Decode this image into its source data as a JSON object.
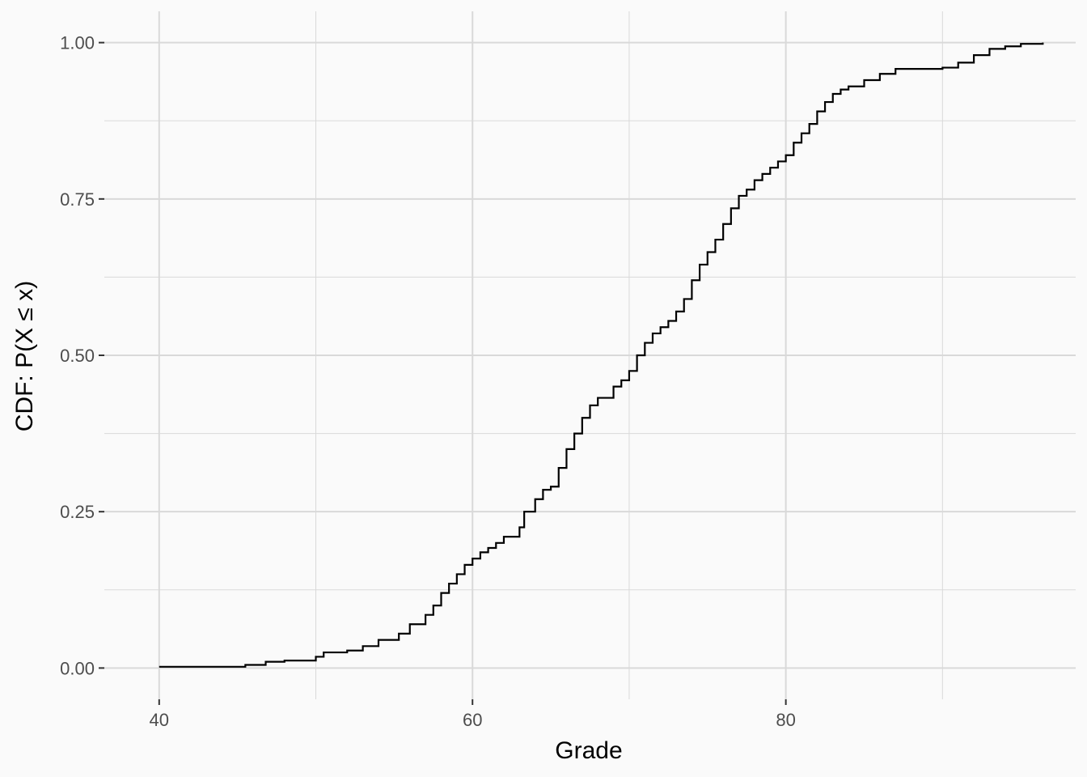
{
  "chart_data": {
    "type": "line",
    "title": "",
    "xlabel": "Grade",
    "ylabel": "CDF: P(X ≤ x)",
    "xlim": [
      36.5,
      98.5
    ],
    "ylim": [
      -0.05,
      1.05
    ],
    "x_ticks": [
      40,
      60,
      80
    ],
    "x_tick_labels": [
      "40",
      "60",
      "80"
    ],
    "y_ticks": [
      0,
      0.25,
      0.5,
      0.75,
      1
    ],
    "y_tick_labels": [
      "0.00",
      "0.25",
      "0.50",
      "0.75",
      "1.00"
    ],
    "grid": true,
    "legend": "none",
    "colors": {
      "background": "#FAFAFA",
      "grid": "#D9D9D9",
      "line": "#000000"
    },
    "series": [
      {
        "step": true,
        "points": [
          [
            40,
            0.002
          ],
          [
            45.5,
            0.005
          ],
          [
            46.8,
            0.01
          ],
          [
            48,
            0.012
          ],
          [
            50,
            0.018
          ],
          [
            50.5,
            0.025
          ],
          [
            52,
            0.028
          ],
          [
            53,
            0.035
          ],
          [
            54,
            0.045
          ],
          [
            55.3,
            0.055
          ],
          [
            56,
            0.07
          ],
          [
            57,
            0.085
          ],
          [
            57.5,
            0.1
          ],
          [
            58,
            0.12
          ],
          [
            58.5,
            0.135
          ],
          [
            59,
            0.15
          ],
          [
            59.5,
            0.165
          ],
          [
            60,
            0.175
          ],
          [
            60.5,
            0.185
          ],
          [
            61,
            0.192
          ],
          [
            61.5,
            0.2
          ],
          [
            62,
            0.21
          ],
          [
            63,
            0.225
          ],
          [
            63.3,
            0.25
          ],
          [
            64,
            0.27
          ],
          [
            64.5,
            0.285
          ],
          [
            65,
            0.29
          ],
          [
            65.5,
            0.32
          ],
          [
            66,
            0.35
          ],
          [
            66.5,
            0.375
          ],
          [
            67,
            0.4
          ],
          [
            67.5,
            0.42
          ],
          [
            68,
            0.432
          ],
          [
            69,
            0.45
          ],
          [
            69.5,
            0.46
          ],
          [
            70,
            0.475
          ],
          [
            70.5,
            0.5
          ],
          [
            71,
            0.52
          ],
          [
            71.5,
            0.535
          ],
          [
            72,
            0.545
          ],
          [
            72.5,
            0.555
          ],
          [
            73,
            0.57
          ],
          [
            73.5,
            0.59
          ],
          [
            74,
            0.62
          ],
          [
            74.5,
            0.645
          ],
          [
            75,
            0.665
          ],
          [
            75.5,
            0.685
          ],
          [
            76,
            0.71
          ],
          [
            76.5,
            0.735
          ],
          [
            77,
            0.755
          ],
          [
            77.5,
            0.765
          ],
          [
            78,
            0.78
          ],
          [
            78.5,
            0.79
          ],
          [
            79,
            0.8
          ],
          [
            79.5,
            0.81
          ],
          [
            80,
            0.82
          ],
          [
            80.5,
            0.84
          ],
          [
            81,
            0.855
          ],
          [
            81.5,
            0.87
          ],
          [
            82,
            0.89
          ],
          [
            82.5,
            0.905
          ],
          [
            83,
            0.918
          ],
          [
            83.5,
            0.925
          ],
          [
            84,
            0.93
          ],
          [
            85,
            0.94
          ],
          [
            86,
            0.95
          ],
          [
            87,
            0.958
          ],
          [
            90,
            0.96
          ],
          [
            91,
            0.968
          ],
          [
            92,
            0.98
          ],
          [
            93,
            0.99
          ],
          [
            94,
            0.994
          ],
          [
            95,
            0.998
          ],
          [
            96.4,
            1.0
          ]
        ]
      }
    ]
  }
}
